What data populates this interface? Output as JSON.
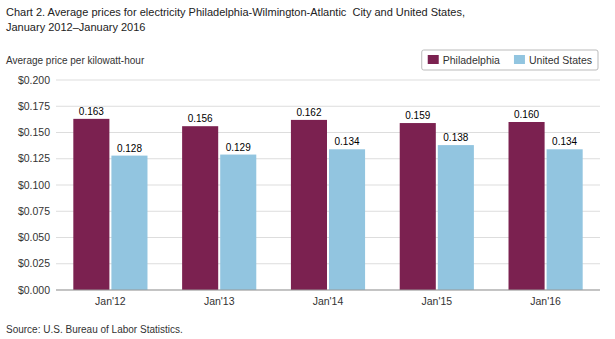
{
  "chart_data": {
    "type": "bar",
    "title": "Chart 2. Average prices for electricity Philadelphia-Wilmington-Atlantic  City and United States,",
    "subtitle": "January 2012–January 2016",
    "y_label": "Average price per kilowatt-hour",
    "annotations": [
      "Source: U.S. Bureau of Labor Statistics."
    ],
    "categories": [
      "Jan'12",
      "Jan'13",
      "Jan'14",
      "Jan'15",
      "Jan'16"
    ],
    "series": [
      {
        "name": "Philadelphia",
        "color": "#7B2150",
        "values": [
          0.163,
          0.156,
          0.162,
          0.159,
          0.16
        ],
        "value_labels": [
          "0.163",
          "0.156",
          "0.162",
          "0.159",
          "0.160"
        ]
      },
      {
        "name": "United States",
        "color": "#92C5E0",
        "values": [
          0.128,
          0.129,
          0.134,
          0.138,
          0.134
        ],
        "value_labels": [
          "0.128",
          "0.129",
          "0.134",
          "0.138",
          "0.134"
        ]
      }
    ],
    "ylim": [
      0,
      0.2
    ],
    "yticks": [
      {
        "value": 0,
        "label": "$0.000"
      },
      {
        "value": 0.025,
        "label": "$0.025"
      },
      {
        "value": 0.05,
        "label": "$0.050"
      },
      {
        "value": 0.075,
        "label": "$0.075"
      },
      {
        "value": 0.1,
        "label": "$0.100"
      },
      {
        "value": 0.125,
        "label": "$0.125"
      },
      {
        "value": 0.15,
        "label": "$0.150"
      },
      {
        "value": 0.175,
        "label": "$0.175"
      },
      {
        "value": 0.2,
        "label": "$0.200"
      }
    ],
    "grid": true,
    "legend": "upper right",
    "data_labels": true
  }
}
